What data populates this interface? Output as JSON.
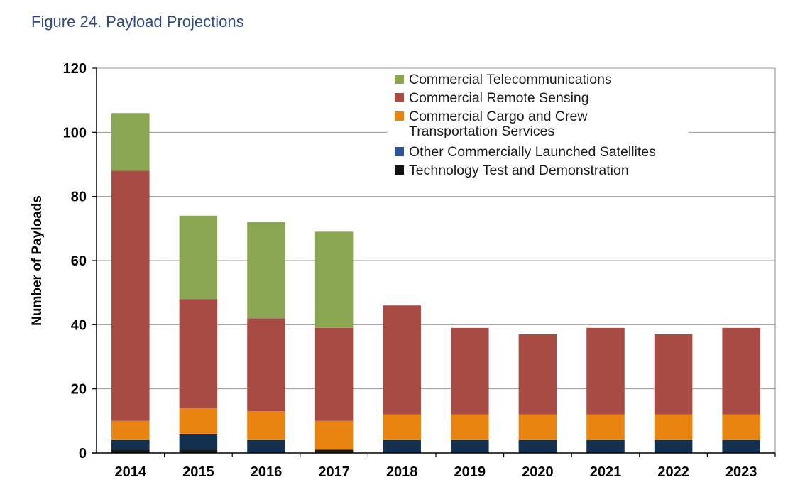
{
  "figure_title": "Figure 24. Payload Projections",
  "chart_data": {
    "type": "bar",
    "stacked": true,
    "title": "Figure 24. Payload Projections",
    "xlabel": "",
    "ylabel": "Number of Payloads",
    "ylim": [
      0,
      120
    ],
    "yticks": [
      "0",
      "20",
      "40",
      "60",
      "80",
      "100",
      "120"
    ],
    "ytick_values": [
      0,
      20,
      40,
      60,
      80,
      100,
      120
    ],
    "grid": true,
    "legend_position": "top-right",
    "categories": [
      "2014",
      "2015",
      "2016",
      "2017",
      "2018",
      "2019",
      "2020",
      "2021",
      "2022",
      "2023"
    ],
    "series": [
      {
        "name": "Technology Test and Demonstration",
        "color": "#1a1a1a",
        "values": [
          1,
          1,
          0,
          1,
          0,
          0,
          0,
          0,
          0,
          0
        ]
      },
      {
        "name": "Other Commercially Launched Satellites",
        "color": "#14304f",
        "values": [
          3,
          5,
          4,
          0,
          4,
          4,
          4,
          4,
          4,
          4
        ]
      },
      {
        "name": "Commercial Cargo and Crew Transportation Services",
        "color": "#ea8410",
        "values": [
          6,
          8,
          9,
          9,
          8,
          8,
          8,
          8,
          8,
          8
        ]
      },
      {
        "name": "Commercial Remote Sensing",
        "color": "#a84b45",
        "values": [
          78,
          34,
          29,
          29,
          34,
          27,
          25,
          27,
          25,
          27
        ]
      },
      {
        "name": "Commercial Telecommunications",
        "color": "#8aa650",
        "values": [
          18,
          26,
          30,
          30,
          0,
          0,
          0,
          0,
          0,
          0
        ]
      }
    ],
    "legend": [
      {
        "lines": [
          "Commercial Telecommunications"
        ],
        "color": "#8aa650"
      },
      {
        "lines": [
          "Commercial Remote Sensing"
        ],
        "color": "#a84b45"
      },
      {
        "lines": [
          "Commercial Cargo and Crew",
          "Transportation Services"
        ],
        "color": "#ea8410"
      },
      {
        "lines": [
          "Other Commercially Launched Satellites"
        ],
        "color": "#2e5399"
      },
      {
        "lines": [
          "Technology Test and Demonstration"
        ],
        "color": "#111111"
      }
    ]
  }
}
